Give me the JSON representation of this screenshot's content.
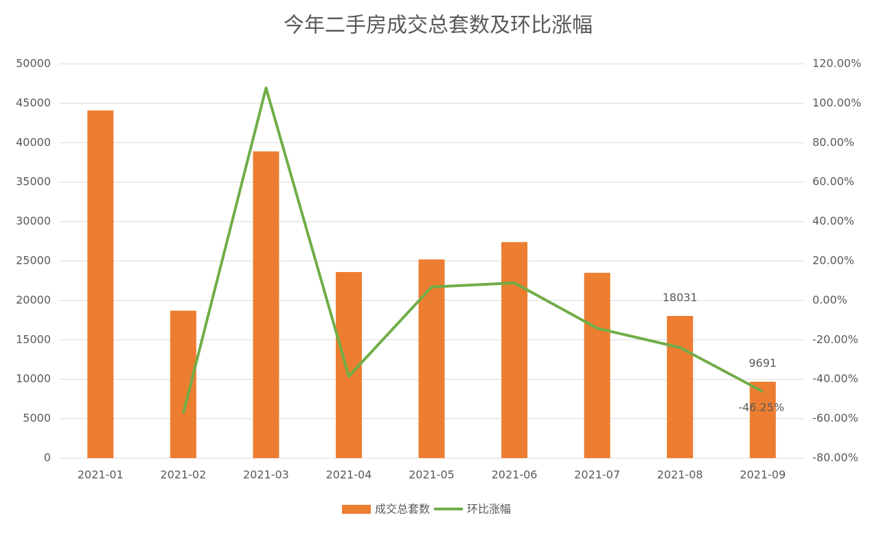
{
  "chart_data": {
    "type": "bar-line",
    "title": "今年二手房成交总套数及环比涨幅",
    "categories": [
      "2021-01",
      "2021-02",
      "2021-03",
      "2021-04",
      "2021-05",
      "2021-06",
      "2021-07",
      "2021-08",
      "2021-09"
    ],
    "series": [
      {
        "name": "成交总套数",
        "type": "bar",
        "color": "#ed7d31",
        "values": [
          44100,
          18700,
          38900,
          23600,
          25200,
          27400,
          23500,
          18031,
          9691
        ],
        "value_labels": [
          null,
          null,
          null,
          null,
          null,
          null,
          null,
          "18031",
          "9691"
        ]
      },
      {
        "name": "环比涨幅",
        "type": "line",
        "axis": "y2",
        "color": "#70ad47",
        "values": [
          null,
          -57.4,
          107.8,
          -38.5,
          6.8,
          8.9,
          -14.1,
          -23.9,
          -46.25
        ],
        "value_labels": [
          null,
          null,
          null,
          null,
          null,
          null,
          null,
          null,
          "-46.25%"
        ]
      }
    ],
    "ylim": [
      0,
      50000
    ],
    "yticks": [
      0,
      5000,
      10000,
      15000,
      20000,
      25000,
      30000,
      35000,
      40000,
      45000,
      50000
    ],
    "y2lim": [
      -80,
      120
    ],
    "y2ticks": [
      {
        "value": -80,
        "label": "-80.00%"
      },
      {
        "value": -60,
        "label": "-60.00%"
      },
      {
        "value": -40,
        "label": "-40.00%"
      },
      {
        "value": -20,
        "label": "-20.00%"
      },
      {
        "value": 0,
        "label": "0.00%"
      },
      {
        "value": 20,
        "label": "20.00%"
      },
      {
        "value": 40,
        "label": "40.00%"
      },
      {
        "value": 60,
        "label": "60.00%"
      },
      {
        "value": 80,
        "label": "80.00%"
      },
      {
        "value": 100,
        "label": "100.00%"
      },
      {
        "value": 120,
        "label": "120.00%"
      }
    ],
    "grid": true,
    "legend": "bottom"
  }
}
